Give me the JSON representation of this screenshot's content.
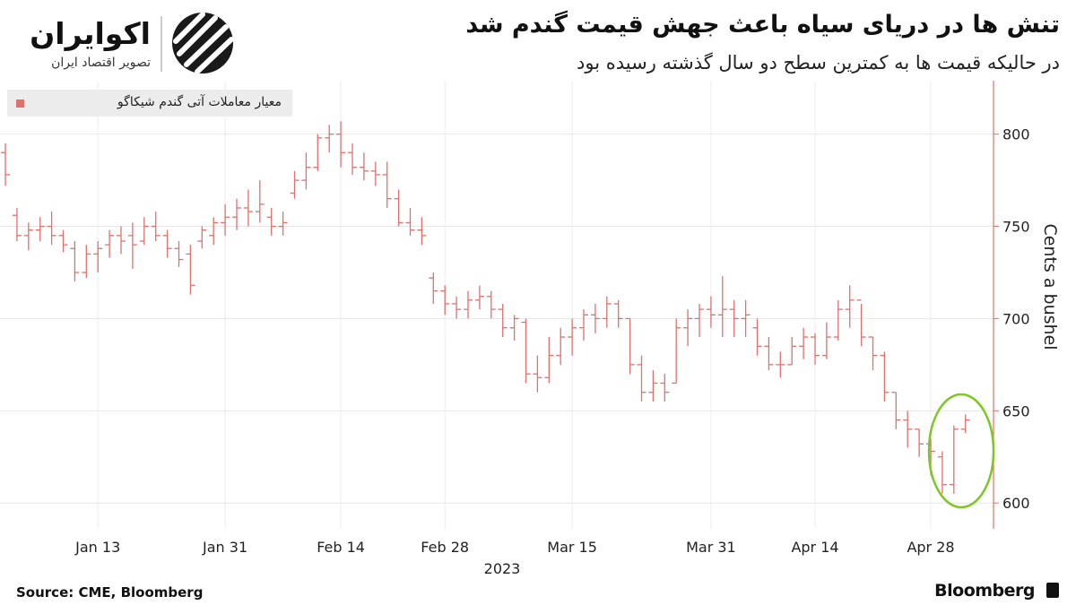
{
  "brand": {
    "name": "اکوایران",
    "tagline": "تصویر اقتصاد ایران"
  },
  "chart_data": {
    "type": "ohlc",
    "title": "تنش ها در دریای سیاه باعث جهش قیمت گندم شد",
    "subtitle": "در حالیکه قیمت ها به کمترین سطح دو سال گذشته رسیده بود",
    "y_label": "Cents a bushel",
    "x_label": "2023",
    "source": "Source: CME, Bloomberg",
    "credit": "Bloomberg",
    "legend": "top-left",
    "grid": true,
    "x": [
      "2023-01-03",
      "2023-01-04",
      "2023-01-05",
      "2023-01-06",
      "2023-01-09",
      "2023-01-10",
      "2023-01-11",
      "2023-01-12",
      "2023-01-13",
      "2023-01-17",
      "2023-01-18",
      "2023-01-19",
      "2023-01-20",
      "2023-01-23",
      "2023-01-24",
      "2023-01-25",
      "2023-01-26",
      "2023-01-27",
      "2023-01-30",
      "2023-01-31",
      "2023-02-01",
      "2023-02-02",
      "2023-02-03",
      "2023-02-06",
      "2023-02-07",
      "2023-02-08",
      "2023-02-09",
      "2023-02-10",
      "2023-02-13",
      "2023-02-14",
      "2023-02-15",
      "2023-02-16",
      "2023-02-17",
      "2023-02-21",
      "2023-02-22",
      "2023-02-23",
      "2023-02-24",
      "2023-02-27",
      "2023-02-28",
      "2023-03-01",
      "2023-03-02",
      "2023-03-03",
      "2023-03-06",
      "2023-03-07",
      "2023-03-08",
      "2023-03-09",
      "2023-03-10",
      "2023-03-13",
      "2023-03-14",
      "2023-03-15",
      "2023-03-16",
      "2023-03-17",
      "2023-03-20",
      "2023-03-21",
      "2023-03-22",
      "2023-03-23",
      "2023-03-24",
      "2023-03-27",
      "2023-03-28",
      "2023-03-29",
      "2023-03-30",
      "2023-03-31",
      "2023-04-03",
      "2023-04-04",
      "2023-04-05",
      "2023-04-06",
      "2023-04-10",
      "2023-04-11",
      "2023-04-12",
      "2023-04-13",
      "2023-04-14",
      "2023-04-17",
      "2023-04-18",
      "2023-04-19",
      "2023-04-20",
      "2023-04-21",
      "2023-04-24",
      "2023-04-25",
      "2023-04-26",
      "2023-04-27",
      "2023-04-28",
      "2023-05-01",
      "2023-05-02",
      "2023-05-03"
    ],
    "xticks": [
      {
        "value": "2023-01-13",
        "label": "Jan 13"
      },
      {
        "value": "2023-01-31",
        "label": "Jan 31"
      },
      {
        "value": "2023-02-14",
        "label": "Feb 14"
      },
      {
        "value": "2023-02-28",
        "label": "Feb 28"
      },
      {
        "value": "2023-03-15",
        "label": "Mar 15"
      },
      {
        "value": "2023-03-31",
        "label": "Mar 31"
      },
      {
        "value": "2023-04-14",
        "label": "Apr 14"
      },
      {
        "value": "2023-04-28",
        "label": "Apr 28"
      }
    ],
    "ylim": [
      586,
      829
    ],
    "yticks": [
      600,
      650,
      700,
      750,
      800
    ],
    "series": [
      {
        "name": "معیار معاملات آتی گندم شیکاگو",
        "color": "#e0706c",
        "open": [
          790,
          756,
          745,
          748,
          750,
          745,
          738,
          725,
          735,
          740,
          745,
          745,
          742,
          750,
          745,
          738,
          735,
          742,
          745,
          752,
          755,
          760,
          758,
          755,
          750,
          768,
          775,
          782,
          798,
          800,
          790,
          782,
          780,
          778,
          765,
          752,
          748,
          722,
          715,
          708,
          705,
          710,
          712,
          705,
          695,
          698,
          670,
          668,
          680,
          690,
          695,
          702,
          700,
          708,
          700,
          675,
          660,
          665,
          665,
          695,
          700,
          705,
          702,
          705,
          700,
          695,
          685,
          675,
          675,
          685,
          690,
          680,
          690,
          705,
          710,
          690,
          680,
          660,
          645,
          640,
          632,
          625,
          610,
          640
        ],
        "high": [
          795,
          760,
          752,
          755,
          758,
          748,
          742,
          740,
          742,
          748,
          750,
          752,
          755,
          758,
          748,
          742,
          740,
          750,
          755,
          762,
          765,
          770,
          775,
          760,
          758,
          780,
          790,
          800,
          805,
          807,
          795,
          790,
          785,
          785,
          770,
          760,
          755,
          725,
          718,
          712,
          715,
          718,
          715,
          708,
          702,
          700,
          680,
          690,
          695,
          700,
          705,
          708,
          712,
          710,
          700,
          680,
          672,
          670,
          700,
          705,
          708,
          712,
          723,
          710,
          710,
          700,
          690,
          682,
          690,
          695,
          692,
          698,
          710,
          718,
          708,
          690,
          682,
          660,
          650,
          640,
          635,
          628,
          642,
          648
        ],
        "low": [
          772,
          742,
          737,
          742,
          740,
          736,
          720,
          722,
          725,
          733,
          735,
          727,
          740,
          742,
          733,
          728,
          713,
          738,
          740,
          745,
          748,
          750,
          752,
          745,
          745,
          765,
          770,
          780,
          790,
          782,
          778,
          775,
          772,
          760,
          750,
          745,
          740,
          708,
          702,
          700,
          700,
          705,
          700,
          690,
          688,
          665,
          660,
          665,
          675,
          680,
          688,
          692,
          695,
          695,
          670,
          655,
          655,
          655,
          665,
          685,
          690,
          695,
          690,
          690,
          690,
          680,
          672,
          668,
          675,
          678,
          675,
          678,
          688,
          695,
          685,
          672,
          655,
          640,
          630,
          625,
          615,
          605,
          605,
          638
        ],
        "close": [
          778,
          745,
          748,
          750,
          745,
          740,
          725,
          735,
          738,
          745,
          742,
          740,
          750,
          745,
          738,
          732,
          718,
          748,
          752,
          755,
          760,
          758,
          762,
          750,
          752,
          775,
          782,
          798,
          800,
          790,
          782,
          780,
          778,
          765,
          752,
          748,
          745,
          715,
          708,
          705,
          710,
          712,
          705,
          695,
          700,
          670,
          668,
          680,
          690,
          695,
          702,
          700,
          708,
          700,
          675,
          660,
          665,
          660,
          695,
          700,
          705,
          702,
          705,
          700,
          702,
          685,
          675,
          675,
          685,
          690,
          680,
          690,
          705,
          710,
          690,
          680,
          660,
          645,
          640,
          632,
          628,
          610,
          640,
          645
        ]
      }
    ]
  }
}
